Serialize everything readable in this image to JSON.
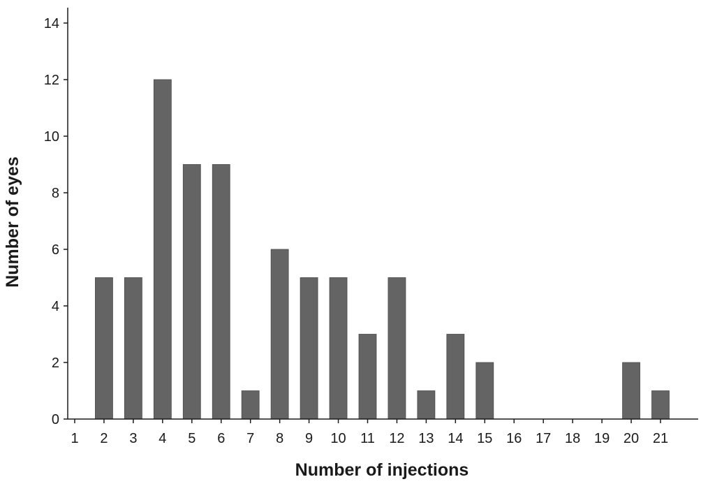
{
  "chart_data": {
    "type": "bar",
    "title": "",
    "xlabel": "Number of injections",
    "ylabel": "Number of eyes",
    "categories": [
      "1",
      "2",
      "3",
      "4",
      "5",
      "6",
      "7",
      "8",
      "9",
      "10",
      "11",
      "12",
      "13",
      "14",
      "15",
      "16",
      "17",
      "18",
      "19",
      "20",
      "21"
    ],
    "values": [
      0,
      5,
      5,
      12,
      9,
      9,
      1,
      6,
      5,
      5,
      3,
      5,
      1,
      3,
      2,
      0,
      0,
      0,
      0,
      2,
      1
    ],
    "ylim": [
      0,
      14
    ],
    "yticks": [
      0,
      2,
      4,
      6,
      8,
      10,
      12,
      14
    ],
    "grid": false,
    "bar_color": "#646464",
    "axis_color": "#1a1a1a"
  }
}
